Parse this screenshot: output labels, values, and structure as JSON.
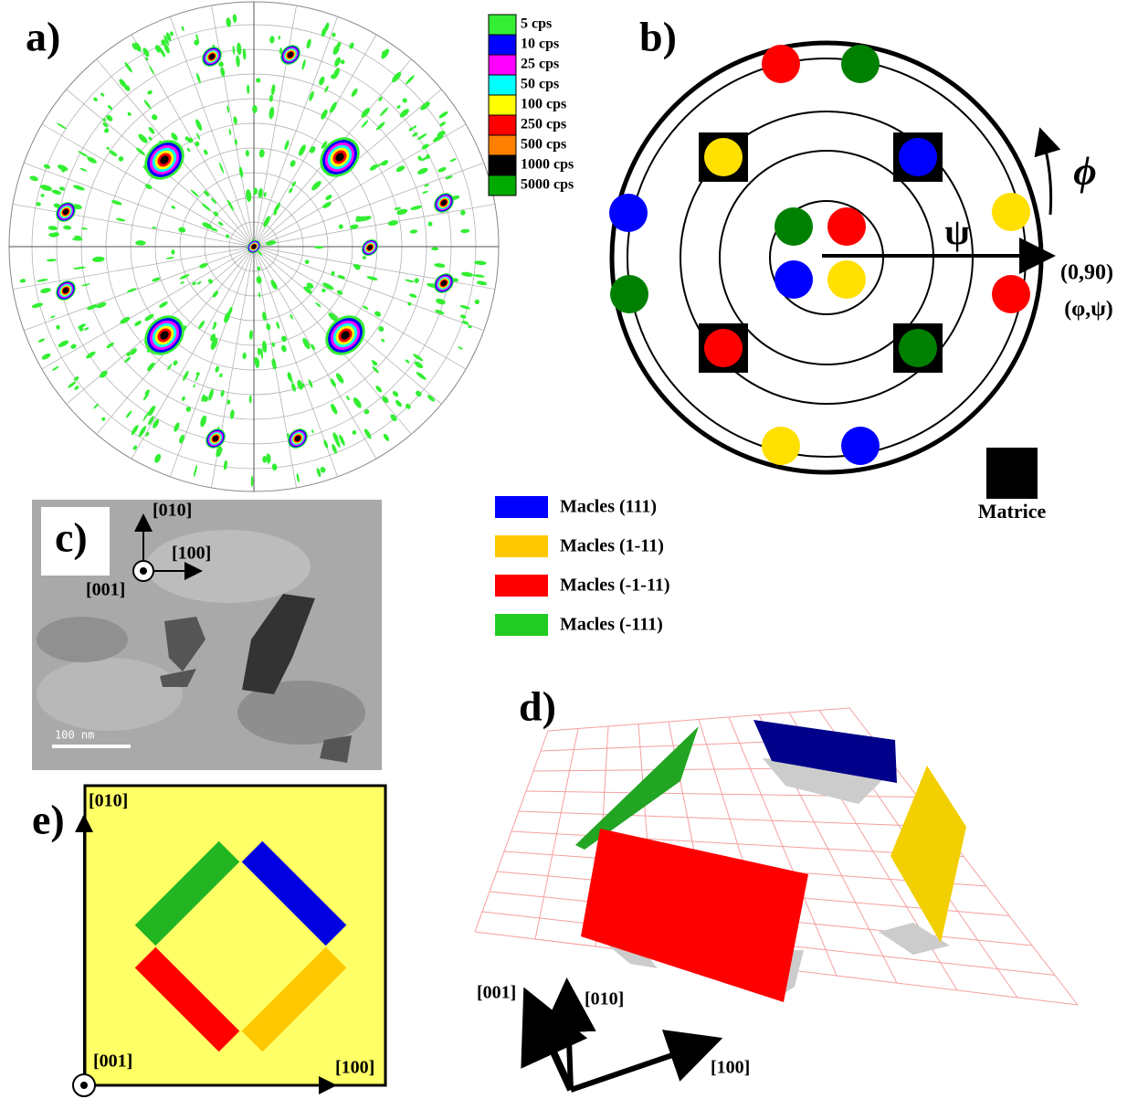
{
  "panel_a": {
    "label": "a)",
    "legend": [
      "5 cps",
      "10 cps",
      "25 cps",
      "50 cps",
      "100 cps",
      "250 cps",
      "500 cps",
      "1000 cps",
      "5000 cps"
    ]
  },
  "panel_b": {
    "label": "b)",
    "psi": "ψ",
    "phi": "ϕ",
    "origin": "(0,90)",
    "coords": "(φ,ψ)",
    "matrix": "Matrice"
  },
  "legend": [
    "Macles (111)",
    "Macles (1-11)",
    "Macles (-1-11)",
    "Macles (-111)"
  ],
  "panel_c": {
    "label": "c)",
    "axes": [
      "[010]",
      "[100]",
      "[001]"
    ],
    "scale": "100 nm"
  },
  "panel_d": {
    "label": "d)",
    "axes": [
      "[001]",
      "[010]",
      "[100]"
    ]
  },
  "panel_e": {
    "label": "e)",
    "axes": [
      "[010]",
      "[001]",
      "[100]"
    ]
  }
}
